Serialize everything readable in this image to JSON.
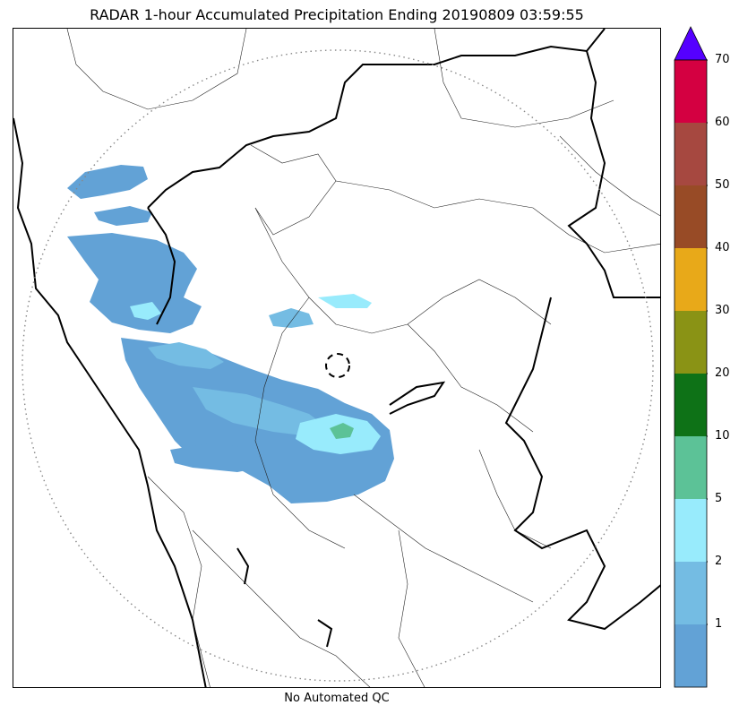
{
  "title": "RADAR 1-hour Accumulated Precipitation Ending 20190809 03:59:55",
  "caption": "No Automated QC",
  "colorbar": {
    "ticks": [
      "1",
      "2",
      "5",
      "10",
      "20",
      "30",
      "40",
      "50",
      "60",
      "70"
    ],
    "bins": [
      {
        "color": "#62a2d6"
      },
      {
        "color": "#74bce3"
      },
      {
        "color": "#98ebfc"
      },
      {
        "color": "#5cc297"
      },
      {
        "color": "#0e7217"
      },
      {
        "color": "#8a9315"
      },
      {
        "color": "#e8a919"
      },
      {
        "color": "#984b26"
      },
      {
        "color": "#a64840"
      },
      {
        "color": "#d40041"
      }
    ],
    "over_color": "#5500ff"
  }
}
